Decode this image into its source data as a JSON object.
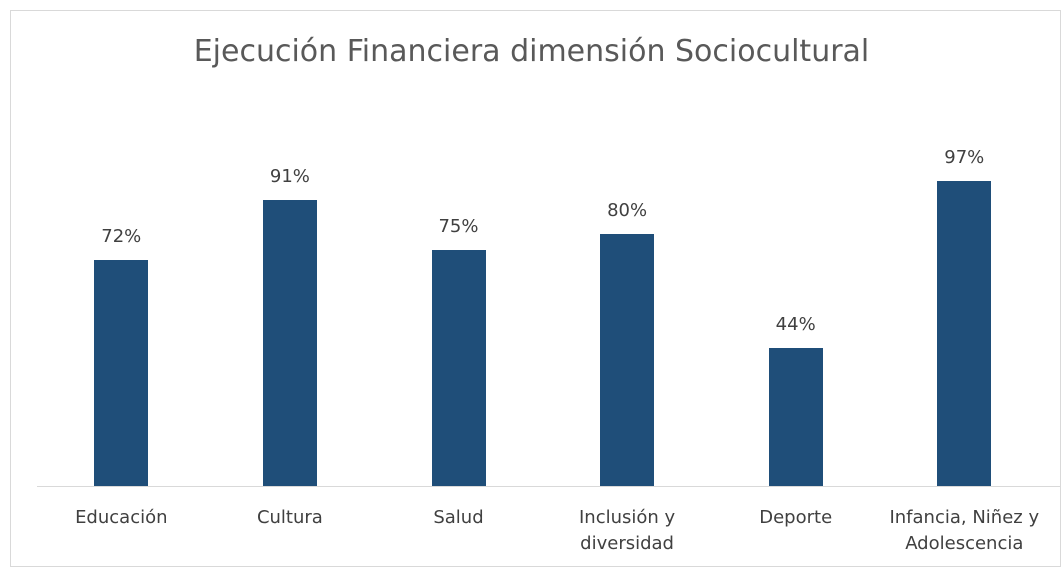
{
  "chart_data": {
    "type": "bar",
    "title": "Ejecución Financiera dimensión Sociocultural",
    "categories": [
      "Educación",
      "Cultura",
      "Salud",
      "Inclusión y diversidad",
      "Deporte",
      "Infancia, Niñez y Adolescencia"
    ],
    "values": [
      72,
      91,
      75,
      80,
      44,
      97
    ],
    "value_labels": [
      "72%",
      "91%",
      "75%",
      "80%",
      "44%",
      "97%"
    ],
    "color": "#1f4e79"
  }
}
